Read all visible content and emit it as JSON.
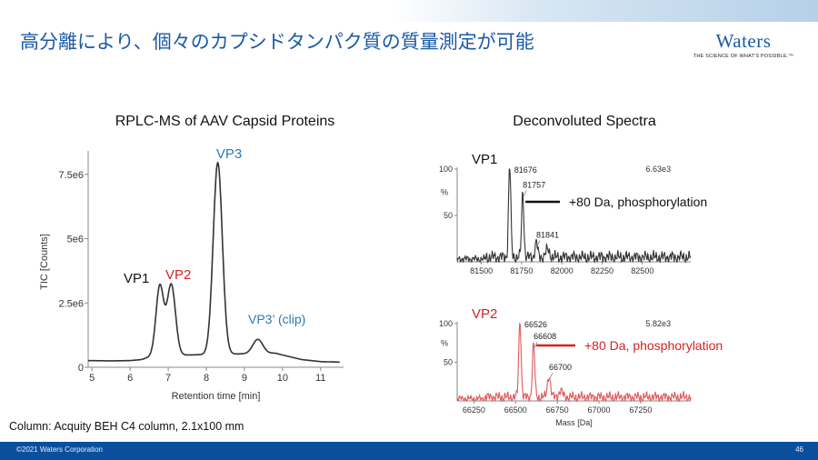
{
  "slide": {
    "title": "高分離により、個々のカプシドタンパク質の質量測定が可能",
    "brand": {
      "name": "Waters",
      "tagline": "THE SCIENCE OF WHAT'S POSSIBLE.™"
    },
    "column_note": "Column: Acquity BEH C4 column, 2.1x100 mm",
    "footer": {
      "copyright": "©2021 Waters Corporation",
      "page": "46"
    },
    "colors": {
      "title": "#1a5aa6",
      "footer": "#0a4f9e",
      "vp2": "#d62222",
      "vp3": "#2a7ab8",
      "trace": "#333333",
      "vp2_trace": "#e35a5a"
    }
  },
  "chart_data": [
    {
      "type": "line",
      "title": "RPLC-MS of AAV Capsid Proteins",
      "xlabel": "Retention time [min]",
      "ylabel": "TIC [Counts]",
      "xlim": [
        4.9,
        11.6
      ],
      "ylim": [
        0,
        8.2
      ],
      "y_unit": "e6",
      "xticks": [
        5,
        6,
        7,
        8,
        9,
        10,
        11
      ],
      "yticks": [
        {
          "v": 0,
          "label": "0"
        },
        {
          "v": 2.5,
          "label": "2.5e6"
        },
        {
          "v": 5,
          "label": "5e6"
        },
        {
          "v": 7.5,
          "label": "7.5e6"
        }
      ],
      "baseline": [
        [
          4.9,
          0.26
        ],
        [
          5.5,
          0.25
        ],
        [
          6.0,
          0.26
        ],
        [
          6.3,
          0.3
        ],
        [
          6.6,
          0.45
        ],
        [
          9.8,
          0.55
        ],
        [
          10.5,
          0.3
        ],
        [
          11.0,
          0.22
        ],
        [
          11.5,
          0.2
        ]
      ],
      "peaks": [
        {
          "name": "VP1",
          "rt": 6.78,
          "height": 2.7,
          "width": 0.1
        },
        {
          "name": "VP2",
          "rt": 7.08,
          "height": 2.75,
          "width": 0.11
        },
        {
          "name": "VP3",
          "rt": 8.3,
          "height": 7.45,
          "width": 0.12
        },
        {
          "name": "VP3’ (clip)",
          "rt": 9.35,
          "height": 0.55,
          "width": 0.13
        }
      ],
      "series": [
        {
          "name": "TIC",
          "color": "#333333"
        }
      ],
      "annotations": [
        {
          "text": "VP1",
          "color": "#111111"
        },
        {
          "text": "VP2",
          "color": "#d62222"
        },
        {
          "text": "VP3",
          "color": "#2a7ab8"
        },
        {
          "text": "VP3’ (clip)",
          "color": "#2a7ab8"
        }
      ]
    },
    {
      "type": "line",
      "title": "Deconvoluted Spectra",
      "label": "VP1",
      "max_intensity": "6.63e3",
      "xlim": [
        81350,
        82800
      ],
      "ylim": [
        0,
        100
      ],
      "xticks": [
        81500,
        81750,
        82000,
        82250,
        82500
      ],
      "yticks": [
        {
          "v": 100,
          "label": "100"
        },
        {
          "v": 50,
          "label": "50"
        }
      ],
      "ylabel": "%",
      "color": "#333333",
      "peaks": [
        {
          "mass": 81676,
          "intensity": 100,
          "label": "81676",
          "width": 7
        },
        {
          "mass": 81757,
          "intensity": 70,
          "label": "81757",
          "width": 7
        },
        {
          "mass": 81841,
          "intensity": 16,
          "label": "81841",
          "width": 8
        }
      ],
      "annotation": "+80 Da, phosphorylation"
    },
    {
      "type": "line",
      "label": "VP2",
      "max_intensity": "5.82e3",
      "xlim": [
        66150,
        67550
      ],
      "ylim": [
        0,
        100
      ],
      "xticks": [
        66250,
        66500,
        66750,
        67000,
        67250
      ],
      "yticks": [
        {
          "v": 100,
          "label": "100"
        },
        {
          "v": 50,
          "label": "50"
        }
      ],
      "ylabel": "%",
      "xlabel": "Mass [Da]",
      "color": "#e35a5a",
      "peaks": [
        {
          "mass": 66526,
          "intensity": 100,
          "label": "66526",
          "width": 7
        },
        {
          "mass": 66608,
          "intensity": 68,
          "label": "66608",
          "width": 7
        },
        {
          "mass": 66700,
          "intensity": 28,
          "label": "66700",
          "width": 9
        }
      ],
      "annotation": "+80 Da, phosphorylation"
    }
  ]
}
